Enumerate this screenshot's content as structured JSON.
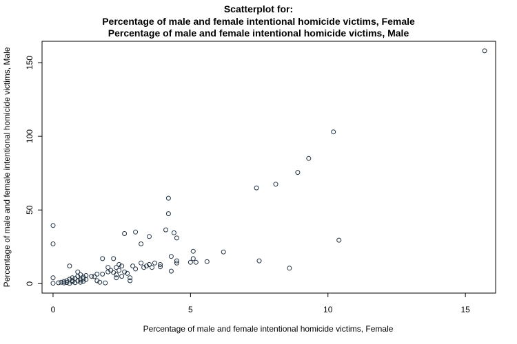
{
  "chart_data": {
    "type": "scatter",
    "title_lines": [
      "Scatterplot for:",
      "Percentage of male and female intentional homicide victims, Female",
      "Percentage of male and female intentional homicide victims, Male"
    ],
    "xlabel": "Percentage of male and female intentional homicide victims, Female",
    "ylabel": "Percentage of male and female intentional homicide victims, Male",
    "xlim": [
      -0.4,
      16.1
    ],
    "ylim": [
      -6.4,
      164.5
    ],
    "xticks": [
      0,
      5,
      10,
      15
    ],
    "yticks": [
      0,
      50,
      100,
      150
    ],
    "grid": false,
    "points": [
      {
        "x": 0.0,
        "y": 39.5
      },
      {
        "x": 0.0,
        "y": 27.0
      },
      {
        "x": 0.0,
        "y": 4.0
      },
      {
        "x": 0.0,
        "y": 0.3
      },
      {
        "x": 0.2,
        "y": 0.6
      },
      {
        "x": 0.3,
        "y": 1.0
      },
      {
        "x": 0.4,
        "y": 0.5
      },
      {
        "x": 0.4,
        "y": 1.5
      },
      {
        "x": 0.5,
        "y": 2.0
      },
      {
        "x": 0.5,
        "y": 0.8
      },
      {
        "x": 0.6,
        "y": 12.0
      },
      {
        "x": 0.6,
        "y": 3.0
      },
      {
        "x": 0.6,
        "y": 0.2
      },
      {
        "x": 0.7,
        "y": 1.2
      },
      {
        "x": 0.7,
        "y": 4.0
      },
      {
        "x": 0.7,
        "y": 2.2
      },
      {
        "x": 0.8,
        "y": 0.7
      },
      {
        "x": 0.8,
        "y": 3.5
      },
      {
        "x": 0.9,
        "y": 1.8
      },
      {
        "x": 0.9,
        "y": 5.0
      },
      {
        "x": 0.9,
        "y": 8.0
      },
      {
        "x": 1.0,
        "y": 2.5
      },
      {
        "x": 1.0,
        "y": 1.0
      },
      {
        "x": 1.0,
        "y": 6.0
      },
      {
        "x": 1.1,
        "y": 3.2
      },
      {
        "x": 1.1,
        "y": 4.5
      },
      {
        "x": 1.1,
        "y": 1.6
      },
      {
        "x": 1.2,
        "y": 5.5
      },
      {
        "x": 1.2,
        "y": 2.8
      },
      {
        "x": 1.4,
        "y": 5.0
      },
      {
        "x": 1.5,
        "y": 4.8
      },
      {
        "x": 1.6,
        "y": 6.5
      },
      {
        "x": 1.6,
        "y": 2.0
      },
      {
        "x": 1.7,
        "y": 1.0
      },
      {
        "x": 1.8,
        "y": 17.0
      },
      {
        "x": 1.8,
        "y": 6.5
      },
      {
        "x": 1.9,
        "y": 0.5
      },
      {
        "x": 2.0,
        "y": 8.0
      },
      {
        "x": 2.0,
        "y": 11.0
      },
      {
        "x": 2.1,
        "y": 9.0
      },
      {
        "x": 2.2,
        "y": 17.0
      },
      {
        "x": 2.2,
        "y": 7.5
      },
      {
        "x": 2.3,
        "y": 11.0
      },
      {
        "x": 2.3,
        "y": 6.0
      },
      {
        "x": 2.3,
        "y": 4.0
      },
      {
        "x": 2.4,
        "y": 9.0
      },
      {
        "x": 2.4,
        "y": 13.0
      },
      {
        "x": 2.5,
        "y": 5.0
      },
      {
        "x": 2.5,
        "y": 12.0
      },
      {
        "x": 2.6,
        "y": 34.0
      },
      {
        "x": 2.6,
        "y": 8.0
      },
      {
        "x": 2.7,
        "y": 7.0
      },
      {
        "x": 2.8,
        "y": 2.0
      },
      {
        "x": 2.8,
        "y": 4.0
      },
      {
        "x": 2.9,
        "y": 12.0
      },
      {
        "x": 3.0,
        "y": 35.0
      },
      {
        "x": 3.0,
        "y": 10.0
      },
      {
        "x": 3.2,
        "y": 27.0
      },
      {
        "x": 3.2,
        "y": 14.0
      },
      {
        "x": 3.3,
        "y": 11.0
      },
      {
        "x": 3.4,
        "y": 12.0
      },
      {
        "x": 3.5,
        "y": 32.0
      },
      {
        "x": 3.5,
        "y": 13.0
      },
      {
        "x": 3.6,
        "y": 11.0
      },
      {
        "x": 3.7,
        "y": 14.0
      },
      {
        "x": 3.9,
        "y": 13.0
      },
      {
        "x": 3.9,
        "y": 11.5
      },
      {
        "x": 4.1,
        "y": 36.5
      },
      {
        "x": 4.2,
        "y": 58.0
      },
      {
        "x": 4.2,
        "y": 47.5
      },
      {
        "x": 4.3,
        "y": 18.5
      },
      {
        "x": 4.3,
        "y": 8.5
      },
      {
        "x": 4.4,
        "y": 34.5
      },
      {
        "x": 4.5,
        "y": 31.0
      },
      {
        "x": 4.5,
        "y": 15.5
      },
      {
        "x": 4.5,
        "y": 14.0
      },
      {
        "x": 5.0,
        "y": 14.5
      },
      {
        "x": 5.1,
        "y": 22.0
      },
      {
        "x": 5.1,
        "y": 17.0
      },
      {
        "x": 5.2,
        "y": 14.5
      },
      {
        "x": 5.6,
        "y": 15.0
      },
      {
        "x": 6.2,
        "y": 21.5
      },
      {
        "x": 7.4,
        "y": 65.0
      },
      {
        "x": 7.5,
        "y": 15.5
      },
      {
        "x": 8.1,
        "y": 67.5
      },
      {
        "x": 8.6,
        "y": 10.5
      },
      {
        "x": 8.9,
        "y": 75.5
      },
      {
        "x": 9.3,
        "y": 85.0
      },
      {
        "x": 10.2,
        "y": 103.0
      },
      {
        "x": 10.4,
        "y": 29.5
      },
      {
        "x": 15.7,
        "y": 158.0
      }
    ]
  }
}
